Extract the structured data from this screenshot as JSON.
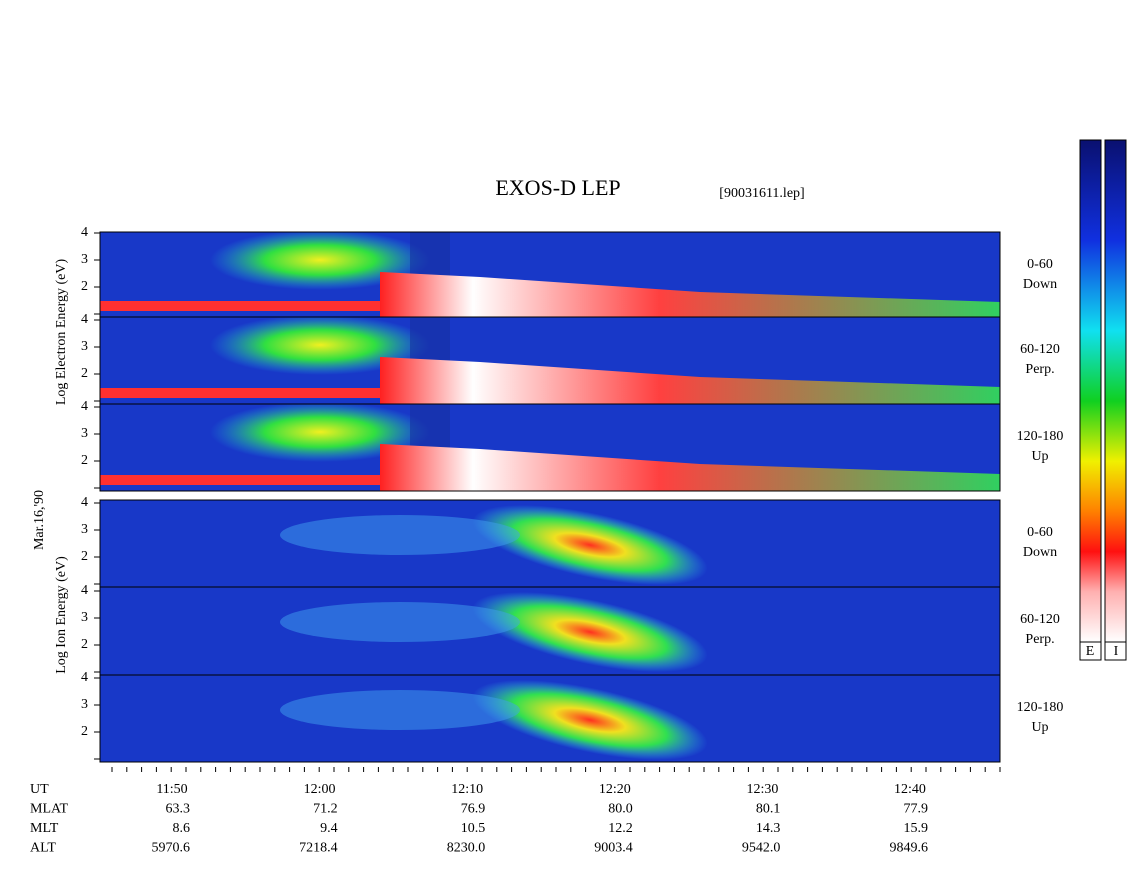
{
  "title": "EXOS-D LEP",
  "file": "[90031611.lep]",
  "electron_axis_label": "Log Electron Energy (eV)",
  "date": "Mar.16,'90",
  "ion_axis_label": "Log Ion Energy (eV)",
  "panels": [
    {
      "species": "electron",
      "yticks": [
        2,
        3,
        4
      ],
      "labels": [
        "0-60",
        "Down"
      ]
    },
    {
      "species": "electron",
      "yticks": [
        2,
        3,
        4
      ],
      "labels": [
        "60-120",
        "Perp."
      ]
    },
    {
      "species": "electron",
      "yticks": [
        2,
        3,
        4
      ],
      "labels": [
        "120-180",
        "Up"
      ]
    },
    {
      "species": "ion",
      "yticks": [
        2,
        3,
        4
      ],
      "labels": [
        "0-60",
        "Down"
      ]
    },
    {
      "species": "ion",
      "yticks": [
        2,
        3,
        4
      ],
      "labels": [
        "60-120",
        "Perp."
      ]
    },
    {
      "species": "ion",
      "yticks": [
        2,
        3,
        4
      ],
      "labels": [
        "120-180",
        "Up"
      ]
    }
  ],
  "ephemeris": [
    {
      "name": "UT",
      "values": [
        "11:50",
        "12:00",
        "12:10",
        "12:20",
        "12:30",
        "12:40"
      ]
    },
    {
      "name": "MLAT",
      "values": [
        "63.3",
        "71.2",
        "76.9",
        "80.0",
        "80.1",
        "77.9"
      ]
    },
    {
      "name": "MLT",
      "values": [
        "8.6",
        "9.4",
        "10.5",
        "12.2",
        "14.3",
        "15.9"
      ]
    },
    {
      "name": "ALT",
      "values": [
        "5970.6",
        "7218.4",
        "8230.0",
        "9003.4",
        "9542.0",
        "9849.6"
      ]
    }
  ],
  "colorbar_labels": [
    "E",
    "I"
  ]
}
